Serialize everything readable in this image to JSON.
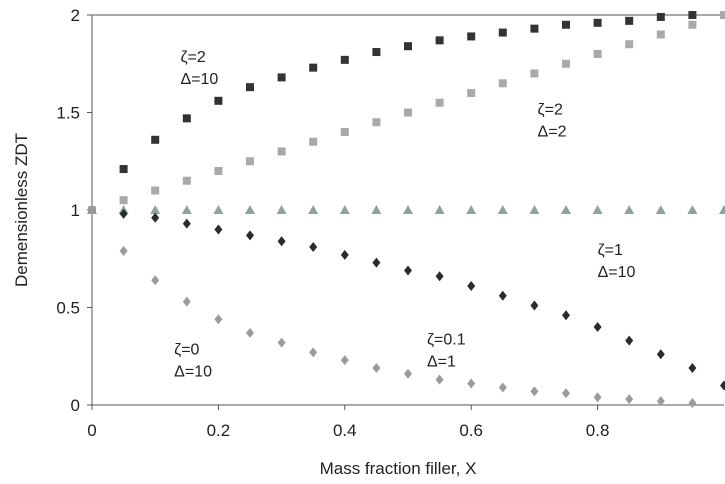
{
  "chart_data": {
    "type": "scatter",
    "xlabel": "Mass fraction filler, X",
    "ylabel": "Demensionless ZDT",
    "xlim": [
      0,
      1
    ],
    "ylim": [
      0,
      2
    ],
    "x_ticks": [
      "0",
      "0.2",
      "0.4",
      "0.6",
      "0.8"
    ],
    "y_ticks": [
      "0",
      "0.5",
      "1",
      "1.5",
      "2"
    ],
    "grid": false,
    "legend": "none",
    "series": [
      {
        "id": "s1",
        "marker": "square",
        "color": "#333333",
        "x": [
          0,
          0.05,
          0.1,
          0.15,
          0.2,
          0.25,
          0.3,
          0.35,
          0.4,
          0.45,
          0.5,
          0.55,
          0.6,
          0.65,
          0.7,
          0.75,
          0.8,
          0.85,
          0.9,
          0.95,
          1.0
        ],
        "y": [
          1.0,
          1.21,
          1.36,
          1.47,
          1.56,
          1.63,
          1.68,
          1.73,
          1.77,
          1.81,
          1.84,
          1.87,
          1.89,
          1.91,
          1.93,
          1.95,
          1.96,
          1.97,
          1.99,
          2.0,
          2.0
        ]
      },
      {
        "id": "s2",
        "marker": "square",
        "color": "#a9a9a9",
        "x": [
          0,
          0.05,
          0.1,
          0.15,
          0.2,
          0.25,
          0.3,
          0.35,
          0.4,
          0.45,
          0.5,
          0.55,
          0.6,
          0.65,
          0.7,
          0.75,
          0.8,
          0.85,
          0.9,
          0.95,
          1.0
        ],
        "y": [
          1.0,
          1.05,
          1.1,
          1.15,
          1.2,
          1.25,
          1.3,
          1.35,
          1.4,
          1.45,
          1.5,
          1.55,
          1.6,
          1.65,
          1.7,
          1.75,
          1.8,
          1.85,
          1.9,
          1.95,
          2.0
        ]
      },
      {
        "id": "s3",
        "marker": "triangle",
        "color": "#8fa39c",
        "x": [
          0,
          0.05,
          0.1,
          0.15,
          0.2,
          0.25,
          0.3,
          0.35,
          0.4,
          0.45,
          0.5,
          0.55,
          0.6,
          0.65,
          0.7,
          0.75,
          0.8,
          0.85,
          0.9,
          0.95,
          1.0
        ],
        "y": [
          1.0,
          1.0,
          1.0,
          1.0,
          1.0,
          1.0,
          1.0,
          1.0,
          1.0,
          1.0,
          1.0,
          1.0,
          1.0,
          1.0,
          1.0,
          1.0,
          1.0,
          1.0,
          1.0,
          1.0,
          1.0
        ]
      },
      {
        "id": "s4",
        "marker": "diamond",
        "color": "#2b2b2b",
        "x": [
          0,
          0.05,
          0.1,
          0.15,
          0.2,
          0.25,
          0.3,
          0.35,
          0.4,
          0.45,
          0.5,
          0.55,
          0.6,
          0.65,
          0.7,
          0.75,
          0.8,
          0.85,
          0.9,
          0.95,
          1.0
        ],
        "y": [
          1.0,
          0.98,
          0.96,
          0.93,
          0.9,
          0.87,
          0.84,
          0.81,
          0.77,
          0.73,
          0.69,
          0.66,
          0.61,
          0.56,
          0.51,
          0.46,
          0.4,
          0.33,
          0.26,
          0.19,
          0.1
        ]
      },
      {
        "id": "s5",
        "marker": "diamond",
        "color": "#9b9b9b",
        "x": [
          0,
          0.05,
          0.1,
          0.15,
          0.2,
          0.25,
          0.3,
          0.35,
          0.4,
          0.45,
          0.5,
          0.55,
          0.6,
          0.65,
          0.7,
          0.75,
          0.8,
          0.85,
          0.9,
          0.95
        ],
        "y": [
          1.0,
          0.79,
          0.64,
          0.53,
          0.44,
          0.37,
          0.32,
          0.27,
          0.23,
          0.19,
          0.16,
          0.13,
          0.11,
          0.09,
          0.07,
          0.06,
          0.04,
          0.03,
          0.02,
          0.01
        ]
      }
    ],
    "annotations": [
      {
        "id": "a1",
        "lines": [
          "ζ=2",
          "Δ=10"
        ],
        "x": 0.14,
        "y": 1.76
      },
      {
        "id": "a2",
        "lines": [
          "ζ=2",
          "Δ=2"
        ],
        "x": 0.705,
        "y": 1.49
      },
      {
        "id": "a3",
        "lines": [
          "ζ=1",
          "Δ=10"
        ],
        "x": 0.8,
        "y": 0.77
      },
      {
        "id": "a4",
        "lines": [
          "ζ=0.1",
          "Δ=1"
        ],
        "x": 0.53,
        "y": 0.31
      },
      {
        "id": "a5",
        "lines": [
          "ζ=0",
          "Δ=10"
        ],
        "x": 0.13,
        "y": 0.26
      }
    ]
  }
}
